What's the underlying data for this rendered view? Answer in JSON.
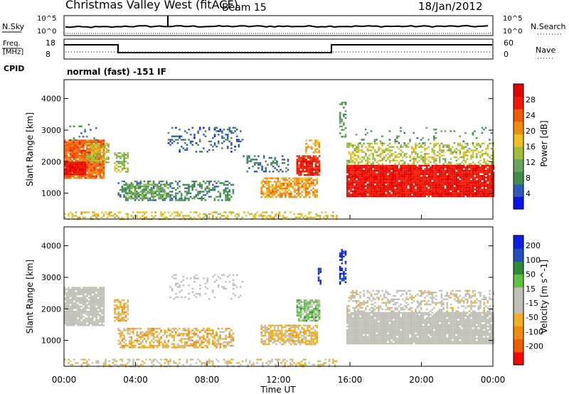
{
  "header": {
    "station": "Christmas Valley West (fitACF)",
    "beam": "Beam 15",
    "date": "18/Jan/2012"
  },
  "status_panels": {
    "nsky_label": "N.Sky",
    "nsearch_label": "N.Search",
    "nsky_ticks": [
      "10^5",
      "10^0"
    ],
    "nsearch_ticks": [
      "10^5",
      "10^0"
    ],
    "freq_label_line1": "Freq.",
    "freq_label_line2": "[MHz]",
    "freq_ticks": [
      "18",
      "8"
    ],
    "nave_label": "Nave",
    "nave_ticks": [
      "60",
      "0"
    ],
    "cpid_label": "CPID",
    "cpid_text": "normal (fast) -151 IF"
  },
  "colors": {
    "power_scale": [
      "#0a14e6",
      "#2f5ab8",
      "#3f8f4a",
      "#6aa35b",
      "#9fbf3a",
      "#f0c020",
      "#f08a10",
      "#f05a00",
      "#f01a00",
      "#e00000"
    ],
    "velocity_scale": [
      "#ff0000",
      "#f05a00",
      "#f08a10",
      "#f0b020",
      "#c0c0b8",
      "#c0c0b8",
      "#60c040",
      "#2f8a3a",
      "#2050c0",
      "#1020e0"
    ]
  },
  "chart_data": [
    {
      "type": "heatmap",
      "title": "",
      "xlabel": "Time UT",
      "ylabel": "Slant Range [km]",
      "x_ticks": [
        "00:00",
        "04:00",
        "08:00",
        "12:00",
        "16:00",
        "20:00",
        "00:00"
      ],
      "x_range_hours": [
        0,
        24
      ],
      "y_ticks": [
        1000,
        2000,
        3000,
        4000
      ],
      "ylim_km": [
        180,
        4600
      ],
      "colorbar": {
        "label": "Power [dB]",
        "ticks": [
          "28",
          "24",
          "20",
          "16",
          "12",
          "8",
          "4"
        ],
        "range": [
          0,
          30
        ]
      },
      "patches": [
        {
          "t": [
            0.0,
            2.2
          ],
          "r": [
            1500,
            2700
          ],
          "value": 22,
          "density": 0.92
        },
        {
          "t": [
            0.0,
            1.2
          ],
          "r": [
            1600,
            2000
          ],
          "value": 27,
          "density": 0.95
        },
        {
          "t": [
            0.3,
            1.8
          ],
          "r": [
            2700,
            3200
          ],
          "value": 6,
          "density": 0.12
        },
        {
          "t": [
            1.2,
            2.5
          ],
          "r": [
            2000,
            2600
          ],
          "value": 14,
          "density": 0.5
        },
        {
          "t": [
            2.8,
            3.6
          ],
          "r": [
            1700,
            2300
          ],
          "value": 13,
          "density": 0.6
        },
        {
          "t": [
            3.0,
            9.5
          ],
          "r": [
            800,
            1400
          ],
          "value": 7,
          "density": 0.45
        },
        {
          "t": [
            3.5,
            5.8
          ],
          "r": [
            850,
            1300
          ],
          "value": 11,
          "density": 0.55
        },
        {
          "t": [
            5.8,
            10.0
          ],
          "r": [
            2300,
            3100
          ],
          "value": 5,
          "density": 0.2
        },
        {
          "t": [
            10.0,
            12.5
          ],
          "r": [
            1700,
            2200
          ],
          "value": 6,
          "density": 0.25
        },
        {
          "t": [
            11.0,
            14.2
          ],
          "r": [
            900,
            1500
          ],
          "value": 19,
          "density": 0.7
        },
        {
          "t": [
            13.0,
            14.3
          ],
          "r": [
            1600,
            2200
          ],
          "value": 26,
          "density": 0.85
        },
        {
          "t": [
            13.5,
            14.3
          ],
          "r": [
            2300,
            2700
          ],
          "value": 18,
          "density": 0.5
        },
        {
          "t": [
            15.4,
            15.8
          ],
          "r": [
            2800,
            3900
          ],
          "value": 9,
          "density": 0.35
        },
        {
          "t": [
            15.8,
            24.0
          ],
          "r": [
            900,
            1900
          ],
          "value": 27,
          "density": 0.95
        },
        {
          "t": [
            15.8,
            24.0
          ],
          "r": [
            1900,
            2600
          ],
          "value": 14,
          "density": 0.45
        },
        {
          "t": [
            16.0,
            24.0
          ],
          "r": [
            2600,
            3100
          ],
          "value": 8,
          "density": 0.08
        },
        {
          "t": [
            0.0,
            15.3
          ],
          "r": [
            180,
            420
          ],
          "value": 16,
          "density": 0.35
        }
      ]
    },
    {
      "type": "heatmap",
      "title": "",
      "xlabel": "Time UT",
      "ylabel": "Slant Range [km]",
      "x_ticks": [
        "00:00",
        "04:00",
        "08:00",
        "12:00",
        "16:00",
        "20:00",
        "00:00"
      ],
      "x_range_hours": [
        0,
        24
      ],
      "y_ticks": [
        1000,
        2000,
        3000,
        4000
      ],
      "ylim_km": [
        180,
        4600
      ],
      "colorbar": {
        "label": "Velocity [m s^-1]",
        "ticks": [
          "200",
          "100",
          "50",
          "15",
          "-15",
          "-50",
          "-100",
          "-200"
        ],
        "range": [
          -250,
          250
        ]
      },
      "patches": [
        {
          "t": [
            0.0,
            2.2
          ],
          "r": [
            1500,
            2700
          ],
          "value": 0,
          "density": 0.9
        },
        {
          "t": [
            2.8,
            3.6
          ],
          "r": [
            1600,
            2300
          ],
          "value": -75,
          "density": 0.65
        },
        {
          "t": [
            3.0,
            9.5
          ],
          "r": [
            800,
            1400
          ],
          "value": -75,
          "density": 0.55
        },
        {
          "t": [
            5.8,
            10.0
          ],
          "r": [
            2300,
            3100
          ],
          "value": 0,
          "density": 0.15
        },
        {
          "t": [
            11.0,
            14.2
          ],
          "r": [
            900,
            1500
          ],
          "value": -60,
          "density": 0.7
        },
        {
          "t": [
            13.0,
            14.3
          ],
          "r": [
            1600,
            2300
          ],
          "value": 60,
          "density": 0.8
        },
        {
          "t": [
            14.2,
            14.4
          ],
          "r": [
            2800,
            3300
          ],
          "value": 200,
          "density": 0.6
        },
        {
          "t": [
            15.4,
            15.8
          ],
          "r": [
            2800,
            3900
          ],
          "value": 200,
          "density": 0.45
        },
        {
          "t": [
            15.8,
            24.0
          ],
          "r": [
            900,
            1900
          ],
          "value": 0,
          "density": 0.95
        },
        {
          "t": [
            15.8,
            24.0
          ],
          "r": [
            1900,
            2600
          ],
          "value": -20,
          "density": 0.4
        },
        {
          "t": [
            0.0,
            15.3
          ],
          "r": [
            180,
            420
          ],
          "value": -40,
          "density": 0.3
        }
      ]
    }
  ]
}
